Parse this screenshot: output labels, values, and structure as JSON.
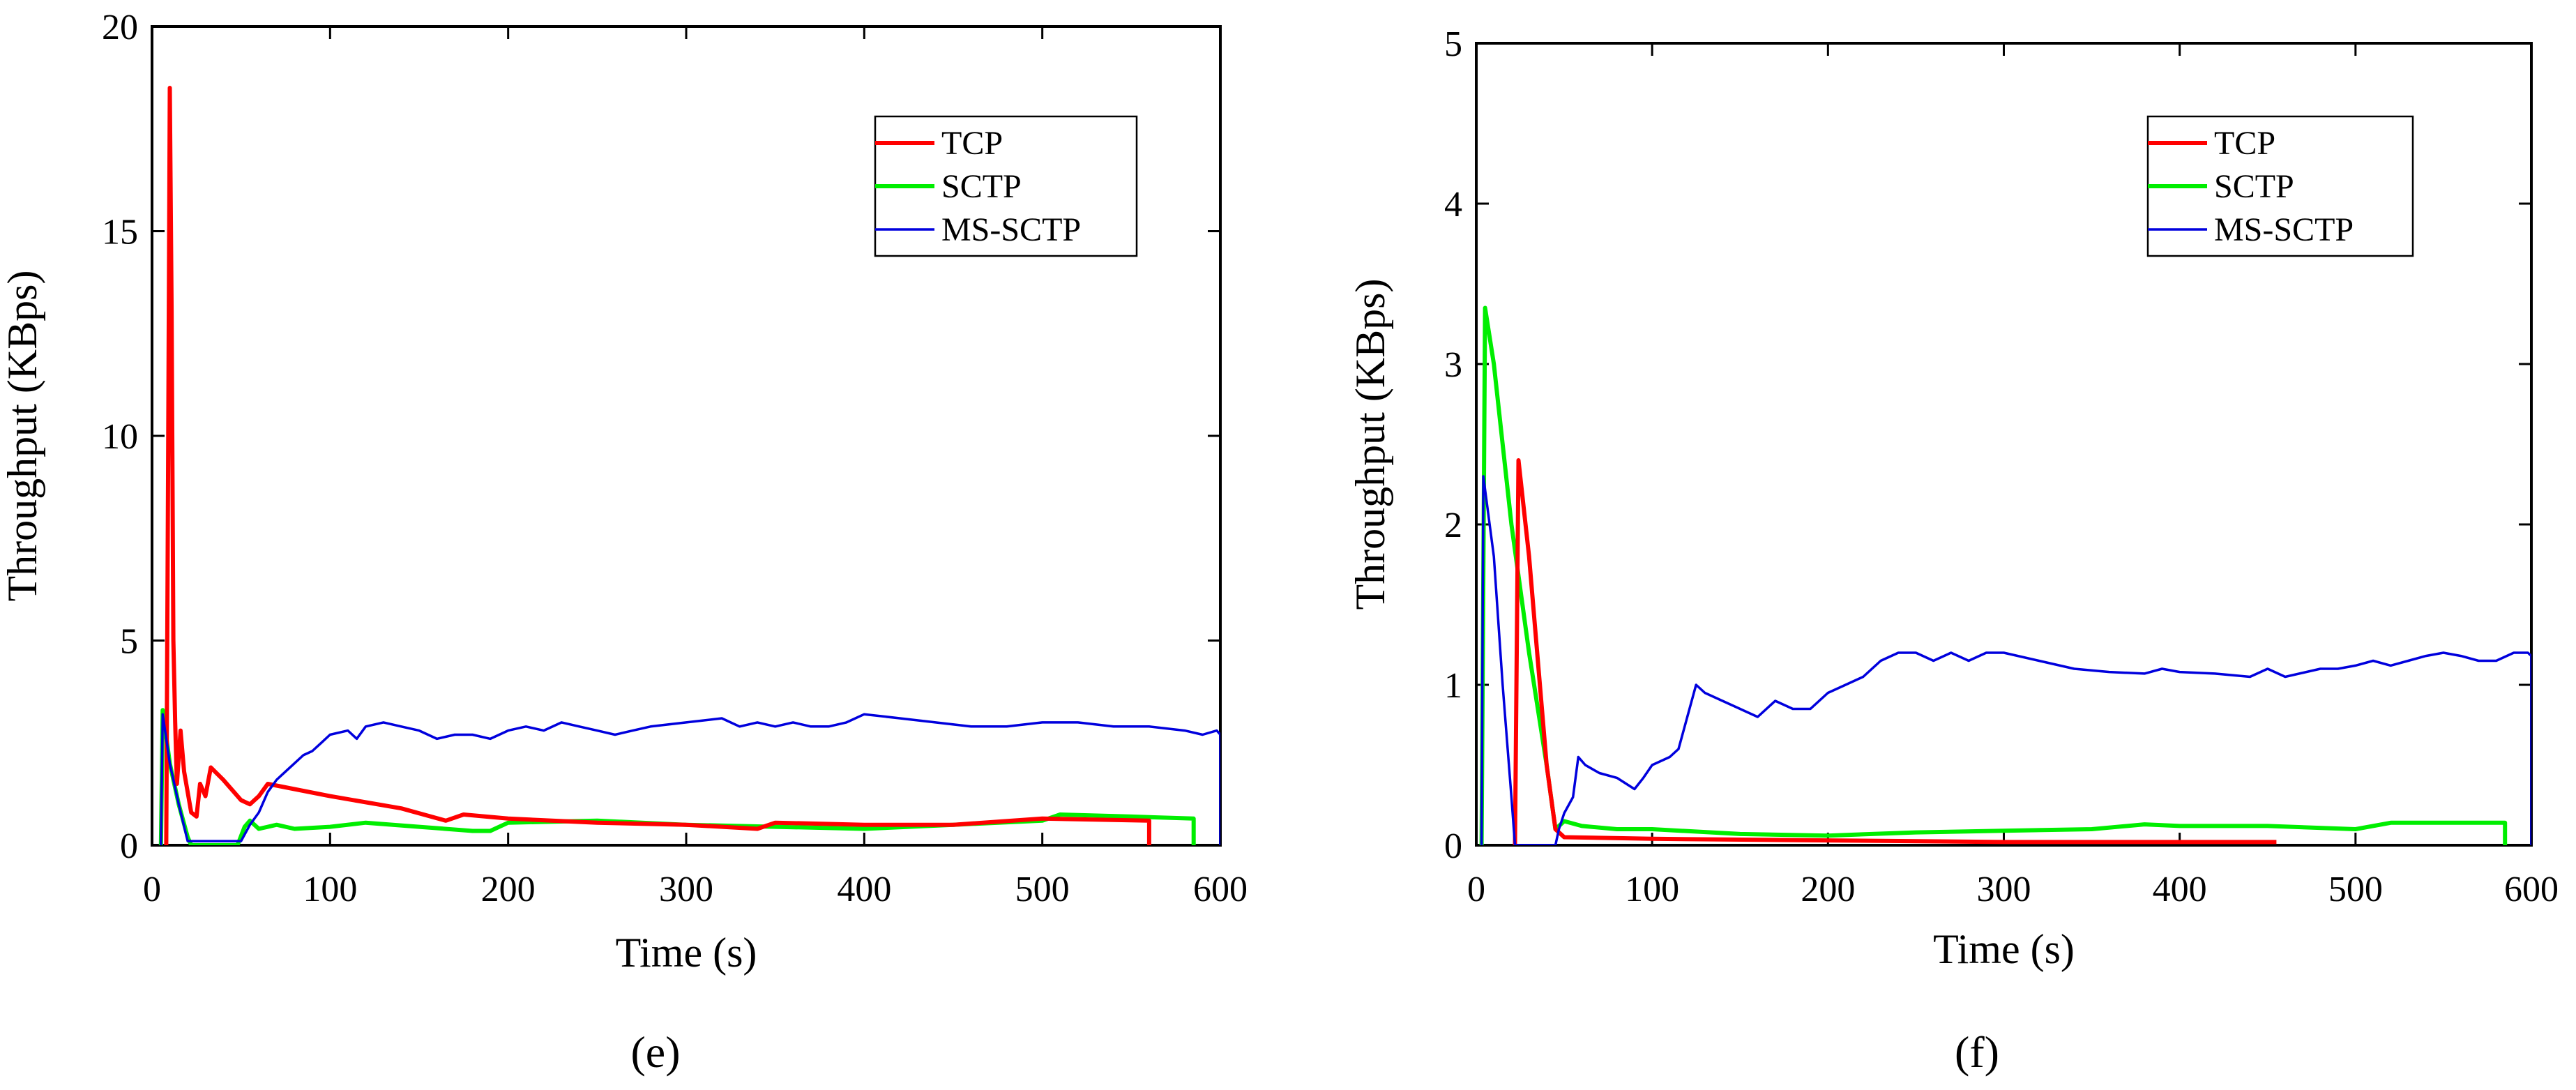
{
  "chart_data": [
    {
      "type": "line",
      "caption": "(e)",
      "xlabel": "Time (s)",
      "ylabel": "Throughput (KBps)",
      "xlim": [
        0,
        600
      ],
      "ylim": [
        0,
        20
      ],
      "xticks": [
        0,
        100,
        200,
        300,
        400,
        500,
        600
      ],
      "yticks": [
        0,
        5,
        10,
        15,
        20
      ],
      "legend_position": "top-right",
      "series": [
        {
          "name": "TCP",
          "color": "#ff0000",
          "width": "thick",
          "points": [
            [
              8,
              0
            ],
            [
              9,
              9
            ],
            [
              10,
              18.5
            ],
            [
              11,
              13
            ],
            [
              12,
              5
            ],
            [
              13,
              3
            ],
            [
              14,
              1.5
            ],
            [
              16,
              2.8
            ],
            [
              18,
              1.8
            ],
            [
              22,
              0.8
            ],
            [
              25,
              0.7
            ],
            [
              27,
              1.5
            ],
            [
              30,
              1.2
            ],
            [
              33,
              1.9
            ],
            [
              40,
              1.6
            ],
            [
              50,
              1.1
            ],
            [
              55,
              1.0
            ],
            [
              60,
              1.2
            ],
            [
              65,
              1.5
            ],
            [
              100,
              1.2
            ],
            [
              140,
              0.9
            ],
            [
              165,
              0.6
            ],
            [
              175,
              0.75
            ],
            [
              200,
              0.65
            ],
            [
              250,
              0.55
            ],
            [
              300,
              0.5
            ],
            [
              340,
              0.4
            ],
            [
              350,
              0.55
            ],
            [
              400,
              0.5
            ],
            [
              450,
              0.5
            ],
            [
              500,
              0.65
            ],
            [
              560,
              0.6
            ],
            [
              560,
              0
            ]
          ]
        },
        {
          "name": "SCTP",
          "color": "#00ee00",
          "width": "thick",
          "points": [
            [
              5,
              0
            ],
            [
              6,
              3.3
            ],
            [
              10,
              2.0
            ],
            [
              15,
              1.0
            ],
            [
              20,
              0.2
            ],
            [
              22,
              0
            ],
            [
              48,
              0
            ],
            [
              52,
              0.45
            ],
            [
              55,
              0.6
            ],
            [
              60,
              0.4
            ],
            [
              70,
              0.5
            ],
            [
              80,
              0.4
            ],
            [
              100,
              0.45
            ],
            [
              120,
              0.55
            ],
            [
              150,
              0.45
            ],
            [
              180,
              0.35
            ],
            [
              190,
              0.35
            ],
            [
              200,
              0.55
            ],
            [
              250,
              0.6
            ],
            [
              300,
              0.5
            ],
            [
              350,
              0.45
            ],
            [
              400,
              0.4
            ],
            [
              450,
              0.5
            ],
            [
              500,
              0.6
            ],
            [
              510,
              0.75
            ],
            [
              550,
              0.7
            ],
            [
              585,
              0.65
            ],
            [
              585,
              0
            ]
          ]
        },
        {
          "name": "MS-SCTP",
          "color": "#0000dd",
          "width": "thin",
          "points": [
            [
              5,
              0
            ],
            [
              6,
              3.2
            ],
            [
              10,
              2.0
            ],
            [
              15,
              1.0
            ],
            [
              20,
              0.1
            ],
            [
              50,
              0.1
            ],
            [
              55,
              0.5
            ],
            [
              60,
              0.8
            ],
            [
              65,
              1.3
            ],
            [
              70,
              1.6
            ],
            [
              75,
              1.8
            ],
            [
              80,
              2.0
            ],
            [
              85,
              2.2
            ],
            [
              90,
              2.3
            ],
            [
              95,
              2.5
            ],
            [
              100,
              2.7
            ],
            [
              110,
              2.8
            ],
            [
              115,
              2.6
            ],
            [
              120,
              2.9
            ],
            [
              130,
              3.0
            ],
            [
              140,
              2.9
            ],
            [
              150,
              2.8
            ],
            [
              160,
              2.6
            ],
            [
              170,
              2.7
            ],
            [
              180,
              2.7
            ],
            [
              190,
              2.6
            ],
            [
              200,
              2.8
            ],
            [
              210,
              2.9
            ],
            [
              220,
              2.8
            ],
            [
              230,
              3.0
            ],
            [
              240,
              2.9
            ],
            [
              250,
              2.8
            ],
            [
              260,
              2.7
            ],
            [
              270,
              2.8
            ],
            [
              280,
              2.9
            ],
            [
              300,
              3.0
            ],
            [
              320,
              3.1
            ],
            [
              330,
              2.9
            ],
            [
              340,
              3.0
            ],
            [
              350,
              2.9
            ],
            [
              360,
              3.0
            ],
            [
              370,
              2.9
            ],
            [
              380,
              2.9
            ],
            [
              390,
              3.0
            ],
            [
              400,
              3.2
            ],
            [
              420,
              3.1
            ],
            [
              440,
              3.0
            ],
            [
              460,
              2.9
            ],
            [
              480,
              2.9
            ],
            [
              500,
              3.0
            ],
            [
              520,
              3.0
            ],
            [
              540,
              2.9
            ],
            [
              560,
              2.9
            ],
            [
              580,
              2.8
            ],
            [
              590,
              2.7
            ],
            [
              598,
              2.8
            ],
            [
              600,
              2.7
            ],
            [
              600,
              0
            ]
          ]
        }
      ]
    },
    {
      "type": "line",
      "caption": "(f)",
      "xlabel": "Time (s)",
      "ylabel": "Throughput (KBps)",
      "xlim": [
        0,
        600
      ],
      "ylim": [
        0,
        5
      ],
      "xticks": [
        0,
        100,
        200,
        300,
        400,
        500,
        600
      ],
      "yticks": [
        0,
        1,
        2,
        3,
        4,
        5
      ],
      "legend_position": "top-right",
      "series": [
        {
          "name": "TCP",
          "color": "#ff0000",
          "width": "thick",
          "points": [
            [
              22,
              0
            ],
            [
              24,
              2.4
            ],
            [
              30,
              1.8
            ],
            [
              40,
              0.5
            ],
            [
              45,
              0.1
            ],
            [
              50,
              0.05
            ],
            [
              100,
              0.04
            ],
            [
              200,
              0.03
            ],
            [
              300,
              0.02
            ],
            [
              400,
              0.02
            ],
            [
              455,
              0.02
            ]
          ]
        },
        {
          "name": "SCTP",
          "color": "#00ee00",
          "width": "thick",
          "points": [
            [
              3,
              0
            ],
            [
              5,
              3.35
            ],
            [
              10,
              3.0
            ],
            [
              20,
              2.0
            ],
            [
              30,
              1.2
            ],
            [
              40,
              0.5
            ],
            [
              45,
              0.1
            ],
            [
              50,
              0.15
            ],
            [
              60,
              0.12
            ],
            [
              80,
              0.1
            ],
            [
              100,
              0.1
            ],
            [
              150,
              0.07
            ],
            [
              200,
              0.06
            ],
            [
              250,
              0.08
            ],
            [
              300,
              0.09
            ],
            [
              350,
              0.1
            ],
            [
              380,
              0.13
            ],
            [
              400,
              0.12
            ],
            [
              450,
              0.12
            ],
            [
              500,
              0.1
            ],
            [
              520,
              0.14
            ],
            [
              585,
              0.14
            ],
            [
              585,
              0
            ]
          ]
        },
        {
          "name": "MS-SCTP",
          "color": "#0000dd",
          "width": "thin",
          "points": [
            [
              3,
              0
            ],
            [
              4,
              2.3
            ],
            [
              10,
              1.8
            ],
            [
              15,
              1.0
            ],
            [
              20,
              0.3
            ],
            [
              22,
              0
            ],
            [
              45,
              0
            ],
            [
              47,
              0.1
            ],
            [
              50,
              0.2
            ],
            [
              55,
              0.3
            ],
            [
              58,
              0.55
            ],
            [
              62,
              0.5
            ],
            [
              70,
              0.45
            ],
            [
              80,
              0.42
            ],
            [
              90,
              0.35
            ],
            [
              95,
              0.42
            ],
            [
              100,
              0.5
            ],
            [
              110,
              0.55
            ],
            [
              115,
              0.6
            ],
            [
              120,
              0.8
            ],
            [
              125,
              1.0
            ],
            [
              130,
              0.95
            ],
            [
              140,
              0.9
            ],
            [
              150,
              0.85
            ],
            [
              160,
              0.8
            ],
            [
              170,
              0.9
            ],
            [
              180,
              0.85
            ],
            [
              190,
              0.85
            ],
            [
              200,
              0.95
            ],
            [
              210,
              1.0
            ],
            [
              220,
              1.05
            ],
            [
              230,
              1.15
            ],
            [
              240,
              1.2
            ],
            [
              250,
              1.2
            ],
            [
              260,
              1.15
            ],
            [
              270,
              1.2
            ],
            [
              280,
              1.15
            ],
            [
              290,
              1.2
            ],
            [
              300,
              1.2
            ],
            [
              320,
              1.15
            ],
            [
              340,
              1.1
            ],
            [
              360,
              1.08
            ],
            [
              380,
              1.07
            ],
            [
              390,
              1.1
            ],
            [
              400,
              1.08
            ],
            [
              420,
              1.07
            ],
            [
              440,
              1.05
            ],
            [
              450,
              1.1
            ],
            [
              460,
              1.05
            ],
            [
              480,
              1.1
            ],
            [
              490,
              1.1
            ],
            [
              500,
              1.12
            ],
            [
              510,
              1.15
            ],
            [
              520,
              1.12
            ],
            [
              530,
              1.15
            ],
            [
              540,
              1.18
            ],
            [
              550,
              1.2
            ],
            [
              560,
              1.18
            ],
            [
              570,
              1.15
            ],
            [
              580,
              1.15
            ],
            [
              590,
              1.2
            ],
            [
              598,
              1.2
            ],
            [
              600,
              1.18
            ],
            [
              600,
              0
            ]
          ]
        }
      ]
    }
  ]
}
